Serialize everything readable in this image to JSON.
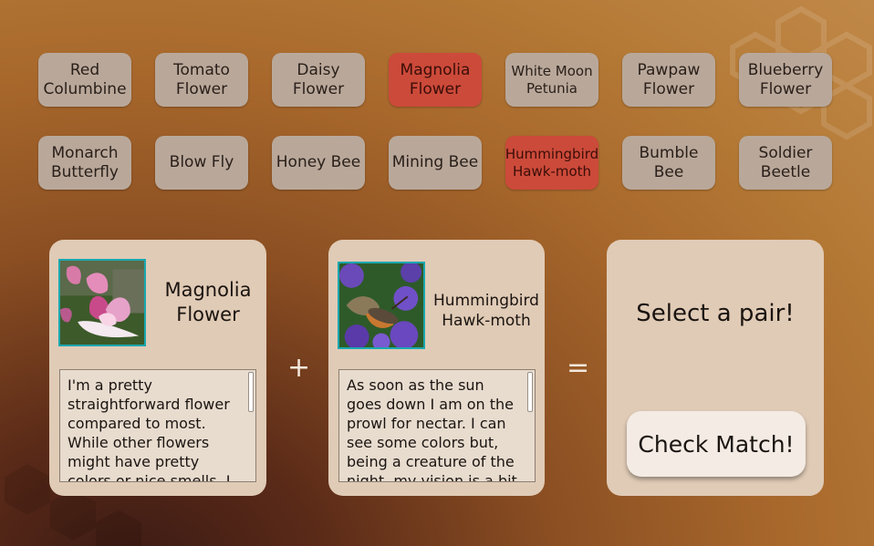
{
  "row1": [
    {
      "label": "Red Columbine",
      "selected": false,
      "small": false
    },
    {
      "label": "Tomato Flower",
      "selected": false,
      "small": false
    },
    {
      "label": "Daisy Flower",
      "selected": false,
      "small": false
    },
    {
      "label": "Magnolia Flower",
      "selected": true,
      "small": false
    },
    {
      "label": "White Moon Petunia",
      "selected": false,
      "small": true
    },
    {
      "label": "Pawpaw Flower",
      "selected": false,
      "small": false
    },
    {
      "label": "Blueberry Flower",
      "selected": false,
      "small": false
    }
  ],
  "row2": [
    {
      "label": "Monarch Butterfly",
      "selected": false,
      "small": false
    },
    {
      "label": "Blow Fly",
      "selected": false,
      "small": false
    },
    {
      "label": "Honey Bee",
      "selected": false,
      "small": false
    },
    {
      "label": "Mining Bee",
      "selected": false,
      "small": false
    },
    {
      "label": "Hummingbird Hawk-moth",
      "selected": true,
      "small": true
    },
    {
      "label": "Bumble Bee",
      "selected": false,
      "small": false
    },
    {
      "label": "Soldier Beetle",
      "selected": false,
      "small": false
    }
  ],
  "flower_card": {
    "name_line1": "Magnolia",
    "name_line2": "Flower",
    "description": "I'm a pretty straightforward flower compared to most. While other flowers might have pretty colors or nice smells, I"
  },
  "insect_card": {
    "name_line1": "Hummingbird",
    "name_line2": "Hawk-moth",
    "description": "As soon as the sun goes down I am on the prowl for nectar. I can see some colors but, being a creature of the night, my vision is a bit"
  },
  "operators": {
    "plus": "+",
    "equals": "="
  },
  "result": {
    "prompt": "Select a pair!",
    "check_label": "Check Match!"
  },
  "colors": {
    "tile": "#b9a89a",
    "tile_selected": "#cc4a3a",
    "card": "#e0cbb6",
    "thumb_border": "#1aa8b0"
  }
}
